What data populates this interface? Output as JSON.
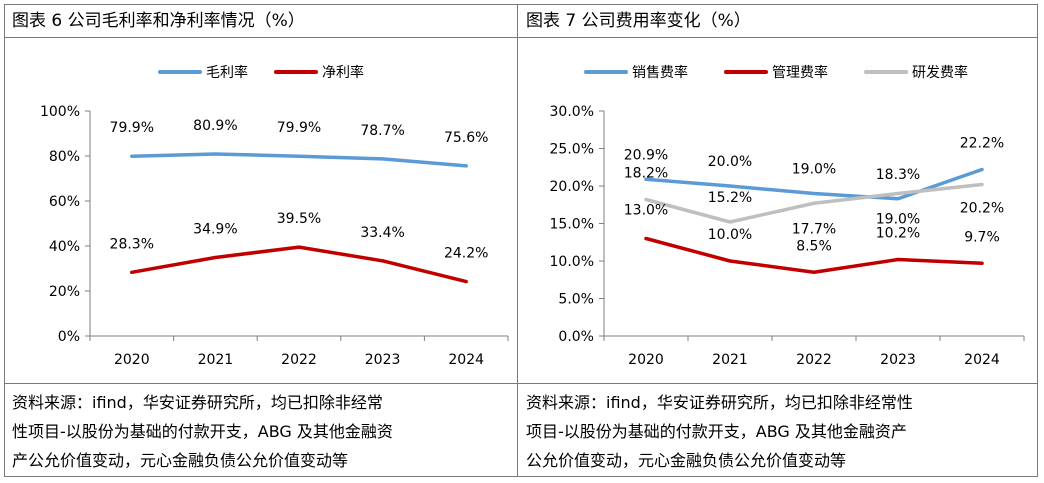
{
  "charts": [
    {
      "title": "图表 6 公司毛利率和净利率情况（%）",
      "source_lines": [
        "资料来源：ifind，华安证券研究所，均已扣除非经常",
        "性项目-以股份为基础的付款开支，ABG 及其他金融资",
        "产公允价值变动，元心金融负债公允价值变动等"
      ]
    },
    {
      "title": "图表 7 公司费用率变化（%）",
      "source_lines": [
        "资料来源：ifind，华安证券研究所，均已扣除非经常性",
        "项目-以股份为基础的付款开支，ABG 及其他金融资产",
        "公允价值变动，元心金融负债公允价值变动等"
      ]
    }
  ],
  "chart_data": [
    {
      "type": "line",
      "title": "图表 6 公司毛利率和净利率情况（%）",
      "categories": [
        "2020",
        "2021",
        "2022",
        "2023",
        "2024"
      ],
      "ylim": [
        0,
        100
      ],
      "yticks": [
        0,
        20,
        40,
        60,
        80,
        100
      ],
      "ytick_labels": [
        "0%",
        "20%",
        "40%",
        "60%",
        "80%",
        "100%"
      ],
      "grid": false,
      "legend_position": "top-center",
      "series": [
        {
          "name": "毛利率",
          "color": "#5b9bd5",
          "values": [
            79.9,
            80.9,
            79.9,
            78.7,
            75.6
          ],
          "labels": [
            "79.9%",
            "80.9%",
            "79.9%",
            "78.7%",
            "75.6%"
          ]
        },
        {
          "name": "净利率",
          "color": "#c00000",
          "values": [
            28.3,
            34.9,
            39.5,
            33.4,
            24.2
          ],
          "labels": [
            "28.3%",
            "34.9%",
            "39.5%",
            "33.4%",
            "24.2%"
          ]
        }
      ]
    },
    {
      "type": "line",
      "title": "图表 7 公司费用率变化（%）",
      "categories": [
        "2020",
        "2021",
        "2022",
        "2023",
        "2024"
      ],
      "ylim": [
        0,
        30
      ],
      "yticks": [
        0,
        5,
        10,
        15,
        20,
        25,
        30
      ],
      "ytick_labels": [
        "0.0%",
        "5.0%",
        "10.0%",
        "15.0%",
        "20.0%",
        "25.0%",
        "30.0%"
      ],
      "grid": false,
      "legend_position": "top-center",
      "series": [
        {
          "name": "销售费率",
          "color": "#5b9bd5",
          "values": [
            20.9,
            20.0,
            19.0,
            18.3,
            22.2
          ],
          "labels": [
            "20.9%",
            "20.0%",
            "19.0%",
            "18.3%",
            "22.2%"
          ]
        },
        {
          "name": "管理费率",
          "color": "#c00000",
          "values": [
            13.0,
            10.0,
            8.5,
            10.2,
            9.7
          ],
          "labels": [
            "13.0%",
            "10.0%",
            "8.5%",
            "10.2%",
            "9.7%"
          ]
        },
        {
          "name": "研发费率",
          "color": "#bfbfbf",
          "values": [
            18.2,
            15.2,
            17.7,
            19.0,
            20.2
          ],
          "labels": [
            "18.2%",
            "15.2%",
            "17.7%",
            "19.0%",
            "20.2%"
          ]
        }
      ]
    }
  ]
}
